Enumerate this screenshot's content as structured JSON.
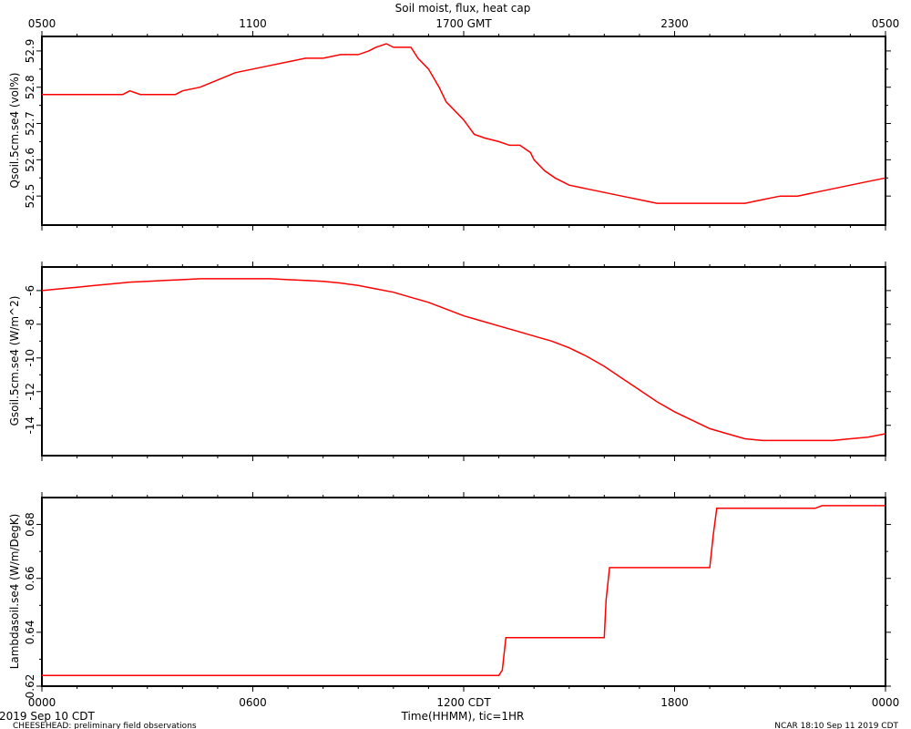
{
  "figure": {
    "title": "Soil moist, flux, heat cap",
    "top_axis_labels": [
      "0500",
      "1100",
      "1700 GMT",
      "2300",
      "0500"
    ],
    "bottom_axis_labels": [
      "0000",
      "0600",
      "1200 CDT",
      "1800",
      "0000"
    ],
    "xlabel": "Time(HHMM), tic=1HR",
    "date_label": "2019 Sep 10 CDT",
    "footer_left": "CHEESEHEAD: preliminary field observations",
    "footer_right": "NCAR 18:10 Sep 11 2019 CDT",
    "line_color": "#ff0000"
  },
  "chart_data": [
    {
      "type": "line",
      "ylabel": "Qsoil.5cm.se4 (vol%)",
      "ylim": [
        52.42,
        52.94
      ],
      "yticks": [
        "52.5",
        "52.6",
        "52.7",
        "52.8",
        "52.9"
      ],
      "xlim": [
        0,
        24
      ],
      "x_units": "hours since 0000 CDT",
      "series": [
        {
          "x": [
            0,
            0.5,
            1,
            1.5,
            2,
            2.3,
            2.5,
            2.8,
            3,
            3.5,
            3.8,
            4,
            4.5,
            5,
            5.5,
            6,
            6.5,
            7,
            7.5,
            8,
            8.5,
            9,
            9.3,
            9.5,
            9.8,
            10,
            10.2,
            10.5,
            10.7,
            11,
            11.3,
            11.5,
            12,
            12.3,
            12.6,
            13,
            13.3,
            13.6,
            13.9,
            14,
            14.3,
            14.6,
            15,
            15.5,
            16,
            16.5,
            17,
            17.5,
            18,
            18.5,
            19,
            19.5,
            20,
            20.5,
            21,
            21.5,
            22,
            22.5,
            23,
            23.5,
            24
          ],
          "y": [
            52.78,
            52.78,
            52.78,
            52.78,
            52.78,
            52.78,
            52.79,
            52.78,
            52.78,
            52.78,
            52.78,
            52.79,
            52.8,
            52.82,
            52.84,
            52.85,
            52.86,
            52.87,
            52.88,
            52.88,
            52.89,
            52.89,
            52.9,
            52.91,
            52.92,
            52.91,
            52.91,
            52.91,
            52.88,
            52.85,
            52.8,
            52.76,
            52.71,
            52.67,
            52.66,
            52.65,
            52.64,
            52.64,
            52.62,
            52.6,
            52.57,
            52.55,
            52.53,
            52.52,
            52.51,
            52.5,
            52.49,
            52.48,
            52.48,
            52.48,
            52.48,
            52.48,
            52.48,
            52.49,
            52.5,
            52.5,
            52.51,
            52.52,
            52.53,
            52.54,
            52.55
          ]
        }
      ]
    },
    {
      "type": "line",
      "ylabel": "Gsoil.5cm.se4 (W/m^2)",
      "ylim": [
        -15.8,
        -4.6
      ],
      "yticks": [
        "-14",
        "-12",
        "-10",
        "-8",
        "-6"
      ],
      "xlim": [
        0,
        24
      ],
      "x_units": "hours since 0000 CDT",
      "series": [
        {
          "x": [
            0,
            0.5,
            1,
            1.5,
            2,
            2.5,
            3,
            3.5,
            4,
            4.5,
            5,
            5.5,
            6,
            6.5,
            7,
            7.5,
            8,
            8.5,
            9,
            9.5,
            10,
            10.5,
            11,
            11.5,
            12,
            12.5,
            13,
            13.5,
            14,
            14.5,
            15,
            15.5,
            16,
            16.5,
            17,
            17.5,
            18,
            18.5,
            19,
            19.5,
            20,
            20.5,
            21,
            21.5,
            22,
            22.5,
            23,
            23.5,
            24
          ],
          "y": [
            -6.0,
            -5.9,
            -5.8,
            -5.7,
            -5.6,
            -5.5,
            -5.45,
            -5.4,
            -5.35,
            -5.3,
            -5.3,
            -5.3,
            -5.3,
            -5.3,
            -5.35,
            -5.4,
            -5.45,
            -5.55,
            -5.7,
            -5.9,
            -6.1,
            -6.4,
            -6.7,
            -7.1,
            -7.5,
            -7.8,
            -8.1,
            -8.4,
            -8.7,
            -9.0,
            -9.4,
            -9.9,
            -10.5,
            -11.2,
            -11.9,
            -12.6,
            -13.2,
            -13.7,
            -14.2,
            -14.5,
            -14.8,
            -14.9,
            -14.9,
            -14.9,
            -14.9,
            -14.9,
            -14.8,
            -14.7,
            -14.5
          ]
        }
      ]
    },
    {
      "type": "line",
      "ylabel": "Lambdasoil.se4 (W/m/DegK)",
      "ylim": [
        0.62,
        0.69
      ],
      "yticks": [
        "0.62",
        "0.64",
        "0.66",
        "0.68"
      ],
      "xlim": [
        0,
        24
      ],
      "x_units": "hours since 0000 CDT",
      "series": [
        {
          "x": [
            0,
            13,
            13.1,
            13.2,
            16,
            16.05,
            16.15,
            19,
            19.1,
            19.2,
            22,
            22.2,
            24
          ],
          "y": [
            0.624,
            0.624,
            0.626,
            0.638,
            0.638,
            0.652,
            0.664,
            0.664,
            0.676,
            0.686,
            0.686,
            0.687,
            0.687
          ]
        }
      ]
    }
  ]
}
